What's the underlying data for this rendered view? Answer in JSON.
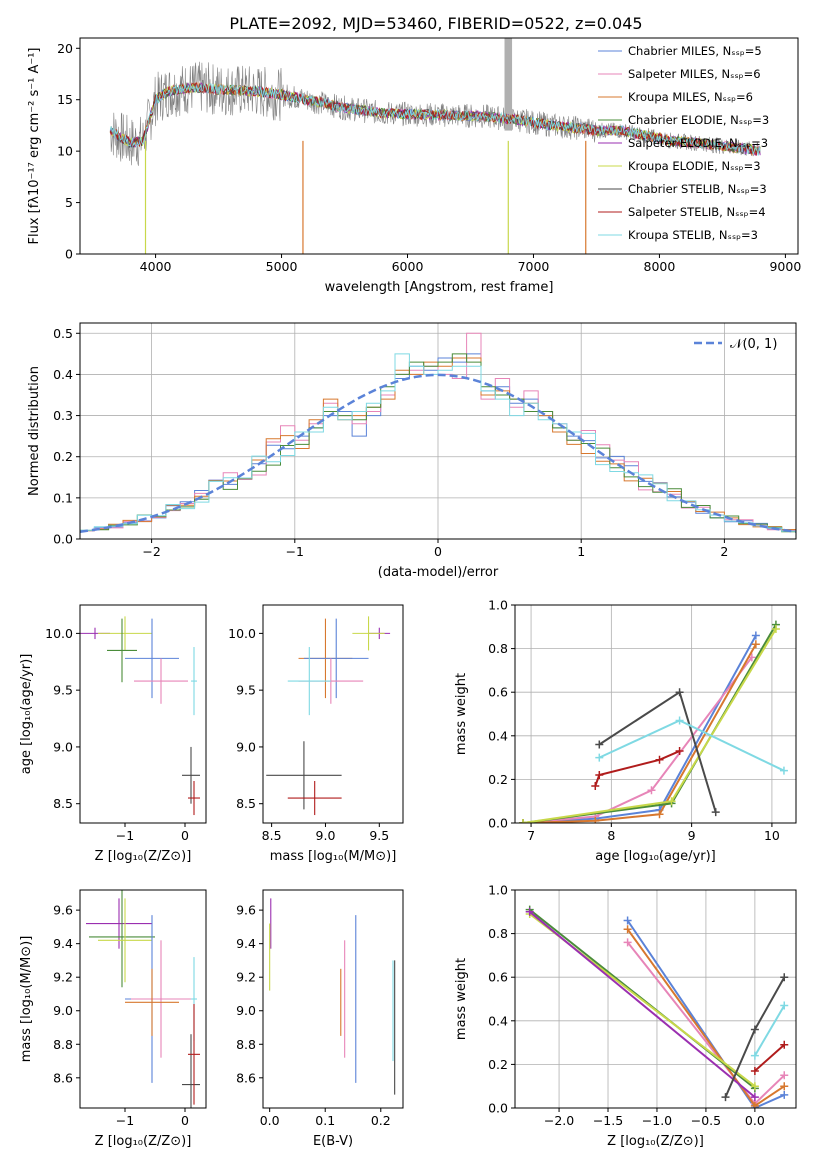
{
  "title": "PLATE=2092, MJD=53460, FIBERID=0522, z=0.045",
  "colors": {
    "blue": "#5b83d8",
    "pink": "#e785b8",
    "orange": "#d7782f",
    "green": "#4a8c3a",
    "purple": "#9a2fb0",
    "yellow": "#c8d84a",
    "dark": "#4a4a4a",
    "red": "#b01c1c",
    "cyan": "#7fd9e3",
    "grey": "#808080"
  },
  "chart_data": [
    {
      "id": "spectrum",
      "type": "line",
      "xlabel": "wavelength [Angstrom, rest frame]",
      "ylabel": "Flux [fλ10⁻¹⁷ erg cm⁻² s⁻¹ A⁻¹]",
      "xlim": [
        3400,
        9100
      ],
      "ylim": [
        0,
        21
      ],
      "xticks": [
        4000,
        5000,
        6000,
        7000,
        8000,
        9000
      ],
      "yticks": [
        0,
        5,
        10,
        15,
        20
      ],
      "legend_position": "top-right",
      "legend": [
        {
          "label": "Chabrier MILES, Nₛₛₚ=5",
          "color": "blue"
        },
        {
          "label": "Salpeter MILES, Nₛₛₚ=6",
          "color": "pink"
        },
        {
          "label": "Kroupa MILES, Nₛₛₚ=6",
          "color": "orange"
        },
        {
          "label": "Chabrier ELODIE, Nₛₛₚ=3",
          "color": "green"
        },
        {
          "label": "Salpeter ELODIE, Nₛₛₚ=3",
          "color": "purple"
        },
        {
          "label": "Kroupa ELODIE, Nₛₛₚ=3",
          "color": "yellow"
        },
        {
          "label": "Chabrier STELIB, Nₛₛₚ=3",
          "color": "dark"
        },
        {
          "label": "Salpeter STELIB, Nₛₛₚ=4",
          "color": "red"
        },
        {
          "label": "Kroupa STELIB, Nₛₛₚ=3",
          "color": "cyan"
        }
      ],
      "model_curve": {
        "x": [
          3640,
          3700,
          3800,
          3900,
          4000,
          4100,
          4300,
          4500,
          4800,
          5000,
          5200,
          5500,
          5800,
          6000,
          6300,
          6600,
          6900,
          7100,
          7300,
          7400,
          7500,
          7700,
          7900,
          8100,
          8300,
          8500,
          8700,
          8800
        ],
        "y": [
          12.0,
          11.5,
          10.8,
          11.0,
          15.0,
          15.8,
          16.2,
          16.0,
          15.8,
          15.5,
          15.0,
          14.2,
          13.7,
          13.6,
          13.5,
          13.4,
          13.0,
          12.6,
          12.3,
          12.2,
          12.0,
          12.0,
          11.5,
          11.0,
          10.8,
          10.5,
          10.2,
          10.0
        ]
      },
      "data_curve": {
        "color": "grey",
        "note": ""
      }
    },
    {
      "id": "residuals",
      "type": "histogram",
      "xlabel": "(data-model)/error",
      "ylabel": "Normed distribution",
      "xlim": [
        -2.5,
        2.5
      ],
      "ylim": [
        0,
        0.525
      ],
      "xticks": [
        -2,
        -1,
        0,
        1,
        2
      ],
      "yticks": [
        0.0,
        0.1,
        0.2,
        0.3,
        0.4,
        0.5
      ],
      "grid": true,
      "legend_position": "top-right",
      "legend": [
        {
          "label": "𝒩(0, 1)",
          "color": "blue",
          "style": "dashed"
        }
      ],
      "bin_width": 0.1,
      "series": [
        {
          "color": "blue",
          "values": [
            0.25,
            0.27,
            0.3,
            0.31,
            0.25,
            0.3,
            0.35,
            0.39,
            0.42,
            0.41,
            0.44,
            0.43,
            0.45,
            0.36,
            0.37,
            0.33,
            0.34,
            0.3,
            0.27,
            0.25
          ]
        },
        {
          "color": "pink",
          "values": [
            0.24,
            0.28,
            0.33,
            0.3,
            0.28,
            0.31,
            0.35,
            0.4,
            0.41,
            0.42,
            0.4,
            0.39,
            0.5,
            0.34,
            0.39,
            0.32,
            0.36,
            0.31,
            0.28,
            0.24
          ]
        },
        {
          "color": "orange",
          "values": [
            0.22,
            0.29,
            0.34,
            0.29,
            0.3,
            0.32,
            0.34,
            0.41,
            0.4,
            0.43,
            0.42,
            0.44,
            0.44,
            0.35,
            0.36,
            0.34,
            0.33,
            0.3,
            0.26,
            0.23
          ]
        },
        {
          "color": "green",
          "values": [
            0.23,
            0.27,
            0.31,
            0.3,
            0.29,
            0.32,
            0.37,
            0.4,
            0.43,
            0.42,
            0.43,
            0.45,
            0.43,
            0.37,
            0.35,
            0.34,
            0.31,
            0.31,
            0.27,
            0.24
          ]
        },
        {
          "color": "cyan",
          "values": [
            0.26,
            0.26,
            0.32,
            0.29,
            0.31,
            0.33,
            0.36,
            0.45,
            0.42,
            0.4,
            0.41,
            0.42,
            0.42,
            0.36,
            0.34,
            0.3,
            0.33,
            0.29,
            0.28,
            0.26
          ]
        }
      ],
      "gaussian": {
        "mu": 0,
        "sigma": 1
      }
    },
    {
      "id": "age-vs-z",
      "type": "errorbar",
      "xlabel": "Z [log₁₀(Z/Z⊙)]",
      "ylabel": "age  [log₁₀(age/yr)]",
      "xlim": [
        -1.75,
        0.35
      ],
      "ylim": [
        8.33,
        10.25
      ],
      "xticks": [
        -1,
        0
      ],
      "yticks": [
        8.5,
        9.0,
        9.5,
        10.0
      ],
      "points": [
        {
          "color": "purple",
          "x": -1.5,
          "xe": 0.25,
          "y": 10.0,
          "ye": 0.05
        },
        {
          "color": "yellow",
          "x": -1.0,
          "xe": 0.45,
          "y": 10.0,
          "ye": 0.15
        },
        {
          "color": "green",
          "x": -1.05,
          "xe": 0.25,
          "y": 9.85,
          "ye": 0.28
        },
        {
          "color": "blue",
          "x": -0.55,
          "xe": 0.45,
          "y": 9.78,
          "ye": 0.35
        },
        {
          "color": "pink",
          "x": -0.4,
          "xe": 0.45,
          "y": 9.58,
          "ye": 0.2
        },
        {
          "color": "cyan",
          "x": 0.15,
          "xe": 0.05,
          "y": 9.58,
          "ye": 0.3
        },
        {
          "color": "dark",
          "x": 0.1,
          "xe": 0.15,
          "y": 8.75,
          "ye": 0.25
        },
        {
          "color": "red",
          "x": 0.15,
          "xe": 0.1,
          "y": 8.55,
          "ye": 0.15
        }
      ]
    },
    {
      "id": "age-vs-mass",
      "type": "errorbar",
      "xlabel": "mass [log₁₀(M/M⊙)]",
      "ylabel": "",
      "xlim": [
        8.42,
        9.72
      ],
      "ylim": [
        8.33,
        10.25
      ],
      "xticks": [
        8.5,
        9.0,
        9.5
      ],
      "yticks": [
        8.5,
        9.0,
        9.5,
        10.0
      ],
      "points": [
        {
          "color": "purple",
          "x": 9.5,
          "xe": 0.1,
          "y": 10.0,
          "ye": 0.05
        },
        {
          "color": "yellow",
          "x": 9.4,
          "xe": 0.15,
          "y": 10.0,
          "ye": 0.15
        },
        {
          "color": "orange",
          "x": 9.0,
          "xe": 0.25,
          "y": 9.78,
          "ye": 0.35
        },
        {
          "color": "blue",
          "x": 9.1,
          "xe": 0.3,
          "y": 9.78,
          "ye": 0.35
        },
        {
          "color": "pink",
          "x": 9.05,
          "xe": 0.3,
          "y": 9.58,
          "ye": 0.2
        },
        {
          "color": "cyan",
          "x": 8.85,
          "xe": 0.2,
          "y": 9.58,
          "ye": 0.3
        },
        {
          "color": "dark",
          "x": 8.8,
          "xe": 0.35,
          "y": 8.75,
          "ye": 0.3
        },
        {
          "color": "red",
          "x": 8.9,
          "xe": 0.25,
          "y": 8.55,
          "ye": 0.15
        }
      ]
    },
    {
      "id": "massweight-vs-age",
      "type": "line",
      "xlabel": "age  [log₁₀(age/yr)]",
      "ylabel": "mass weight",
      "xlim": [
        6.8,
        10.3
      ],
      "ylim": [
        0,
        1.0
      ],
      "xticks": [
        7,
        8,
        9,
        10
      ],
      "yticks": [
        0.0,
        0.2,
        0.4,
        0.6,
        0.8,
        1.0
      ],
      "grid": true,
      "series": [
        {
          "color": "blue",
          "x": [
            6.9,
            7.8,
            8.6,
            9.8
          ],
          "y": [
            0.0,
            0.02,
            0.06,
            0.86
          ]
        },
        {
          "color": "pink",
          "x": [
            6.9,
            7.8,
            8.5,
            9.75
          ],
          "y": [
            0.0,
            0.03,
            0.15,
            0.76
          ]
        },
        {
          "color": "orange",
          "x": [
            6.9,
            7.8,
            8.6,
            9.8
          ],
          "y": [
            0.0,
            0.01,
            0.04,
            0.82
          ]
        },
        {
          "color": "green",
          "x": [
            6.9,
            8.75,
            10.05
          ],
          "y": [
            0.0,
            0.09,
            0.91
          ]
        },
        {
          "color": "yellow",
          "x": [
            6.9,
            8.75,
            10.05
          ],
          "y": [
            0.0,
            0.1,
            0.89
          ]
        },
        {
          "color": "dark",
          "x": [
            7.85,
            8.85,
            9.3
          ],
          "y": [
            0.36,
            0.6,
            0.05
          ]
        },
        {
          "color": "red",
          "x": [
            7.8,
            7.85,
            8.6,
            8.85
          ],
          "y": [
            0.17,
            0.22,
            0.29,
            0.33
          ]
        },
        {
          "color": "cyan",
          "x": [
            7.85,
            8.85,
            10.15
          ],
          "y": [
            0.3,
            0.47,
            0.24
          ]
        }
      ]
    },
    {
      "id": "mass-vs-z",
      "type": "errorbar",
      "xlabel": "Z [log₁₀(Z/Z⊙)]",
      "ylabel": "mass [log₁₀(M/M⊙)]",
      "xlim": [
        -1.75,
        0.35
      ],
      "ylim": [
        8.42,
        9.72
      ],
      "xticks": [
        -1,
        0
      ],
      "yticks": [
        8.6,
        8.8,
        9.0,
        9.2,
        9.4,
        9.6
      ],
      "points": [
        {
          "color": "purple",
          "x": -1.1,
          "xe": 0.55,
          "y": 9.52,
          "ye": 0.15
        },
        {
          "color": "green",
          "x": -1.05,
          "xe": 0.55,
          "y": 9.44,
          "ye": 0.3
        },
        {
          "color": "yellow",
          "x": -1.0,
          "xe": 0.45,
          "y": 9.42,
          "ye": 0.25
        },
        {
          "color": "blue",
          "x": -0.55,
          "xe": 0.45,
          "y": 9.07,
          "ye": 0.5
        },
        {
          "color": "pink",
          "x": -0.4,
          "xe": 0.5,
          "y": 9.07,
          "ye": 0.35
        },
        {
          "color": "orange",
          "x": -0.55,
          "xe": 0.45,
          "y": 9.05,
          "ye": 0.2
        },
        {
          "color": "cyan",
          "x": 0.15,
          "xe": 0.05,
          "y": 9.07,
          "ye": 0.25
        },
        {
          "color": "dark",
          "x": 0.1,
          "xe": 0.15,
          "y": 8.56,
          "ye": 0.3
        },
        {
          "color": "red",
          "x": 0.15,
          "xe": 0.1,
          "y": 8.74,
          "ye": 0.3
        }
      ]
    },
    {
      "id": "mass-vs-ebv",
      "type": "errorbar",
      "xlabel": "E(B-V)",
      "ylabel": "",
      "xlim": [
        -0.012,
        0.24
      ],
      "ylim": [
        8.42,
        9.72
      ],
      "xticks": [
        0.0,
        0.1,
        0.2
      ],
      "yticks": [
        8.6,
        8.8,
        9.0,
        9.2,
        9.4,
        9.6
      ],
      "points": [
        {
          "color": "purple",
          "x": 0.002,
          "xe": 0,
          "y": 9.52,
          "ye": 0.15
        },
        {
          "color": "yellow",
          "x": 0.0,
          "xe": 0,
          "y": 9.32,
          "ye": 0.2
        },
        {
          "color": "orange",
          "x": 0.128,
          "xe": 0,
          "y": 9.05,
          "ye": 0.2
        },
        {
          "color": "pink",
          "x": 0.135,
          "xe": 0,
          "y": 9.07,
          "ye": 0.35
        },
        {
          "color": "blue",
          "x": 0.155,
          "xe": 0,
          "y": 9.07,
          "ye": 0.5
        },
        {
          "color": "cyan",
          "x": 0.222,
          "xe": 0,
          "y": 9.0,
          "ye": 0.3
        },
        {
          "color": "dark",
          "x": 0.225,
          "xe": 0,
          "y": 8.9,
          "ye": 0.4
        }
      ]
    },
    {
      "id": "massweight-vs-z",
      "type": "line",
      "xlabel": "Z [log₁₀(Z/Z⊙)]",
      "ylabel": "mass weight",
      "xlim": [
        -2.45,
        0.42
      ],
      "ylim": [
        0,
        1.0
      ],
      "xticks": [
        -2.0,
        -1.5,
        -1.0,
        -0.5,
        0.0
      ],
      "yticks": [
        0.0,
        0.2,
        0.4,
        0.6,
        0.8,
        1.0
      ],
      "grid": true,
      "series": [
        {
          "color": "blue",
          "x": [
            -1.3,
            0.0,
            0.3
          ],
          "y": [
            0.86,
            0.0,
            0.06
          ]
        },
        {
          "color": "pink",
          "x": [
            -1.3,
            0.0,
            0.3
          ],
          "y": [
            0.76,
            0.02,
            0.15
          ]
        },
        {
          "color": "orange",
          "x": [
            -1.3,
            0.0,
            0.3
          ],
          "y": [
            0.82,
            0.01,
            0.1
          ]
        },
        {
          "color": "green",
          "x": [
            -2.3,
            0.0
          ],
          "y": [
            0.91,
            0.09
          ]
        },
        {
          "color": "yellow",
          "x": [
            -2.3,
            0.0
          ],
          "y": [
            0.89,
            0.1
          ]
        },
        {
          "color": "purple",
          "x": [
            -2.3,
            0.0
          ],
          "y": [
            0.9,
            0.05
          ]
        },
        {
          "color": "dark",
          "x": [
            -0.3,
            0.0,
            0.3
          ],
          "y": [
            0.05,
            0.36,
            0.6
          ]
        },
        {
          "color": "red",
          "x": [
            0.0,
            0.3
          ],
          "y": [
            0.17,
            0.29
          ]
        },
        {
          "color": "cyan",
          "x": [
            0.0,
            0.3
          ],
          "y": [
            0.24,
            0.47
          ]
        }
      ]
    }
  ]
}
